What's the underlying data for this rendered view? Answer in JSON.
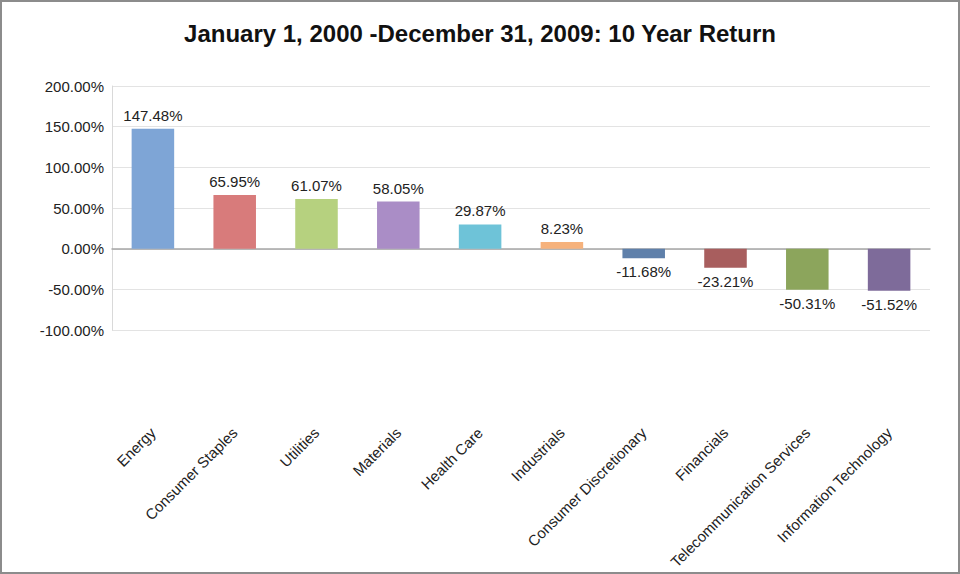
{
  "chart_data": {
    "type": "bar",
    "title": "January 1, 2000 -December 31, 2009: 10 Year Return",
    "categories": [
      "Energy",
      "Consumer Staples",
      "Utilities",
      "Materials",
      "Health Care",
      "Industrials",
      "Consumer Discretionary",
      "Financials",
      "Telecommunication Services",
      "Information Technology"
    ],
    "values": [
      147.48,
      65.95,
      61.07,
      58.05,
      29.87,
      8.23,
      -11.68,
      -23.21,
      -50.31,
      -51.52
    ],
    "value_labels": [
      "147.48%",
      "65.95%",
      "61.07%",
      "58.05%",
      "29.87%",
      "8.23%",
      "-11.68%",
      "-23.21%",
      "-50.31%",
      "-51.52%"
    ],
    "colors": [
      "#7ea5d6",
      "#d87b7b",
      "#b6d17f",
      "#aa8dc6",
      "#6ec3d8",
      "#f6b27c",
      "#5f80aa",
      "#a85e5e",
      "#8ca55c",
      "#7e6b9a"
    ],
    "ylim": [
      -100,
      200
    ],
    "yticks": [
      {
        "value": -100,
        "label": "-100.00%"
      },
      {
        "value": -50,
        "label": "-50.00%"
      },
      {
        "value": 0,
        "label": "0.00%"
      },
      {
        "value": 50,
        "label": "50.00%"
      },
      {
        "value": 100,
        "label": "100.00%"
      },
      {
        "value": 150,
        "label": "150.00%"
      },
      {
        "value": 200,
        "label": "200.00%"
      }
    ],
    "data_labels": true,
    "grid": true
  }
}
